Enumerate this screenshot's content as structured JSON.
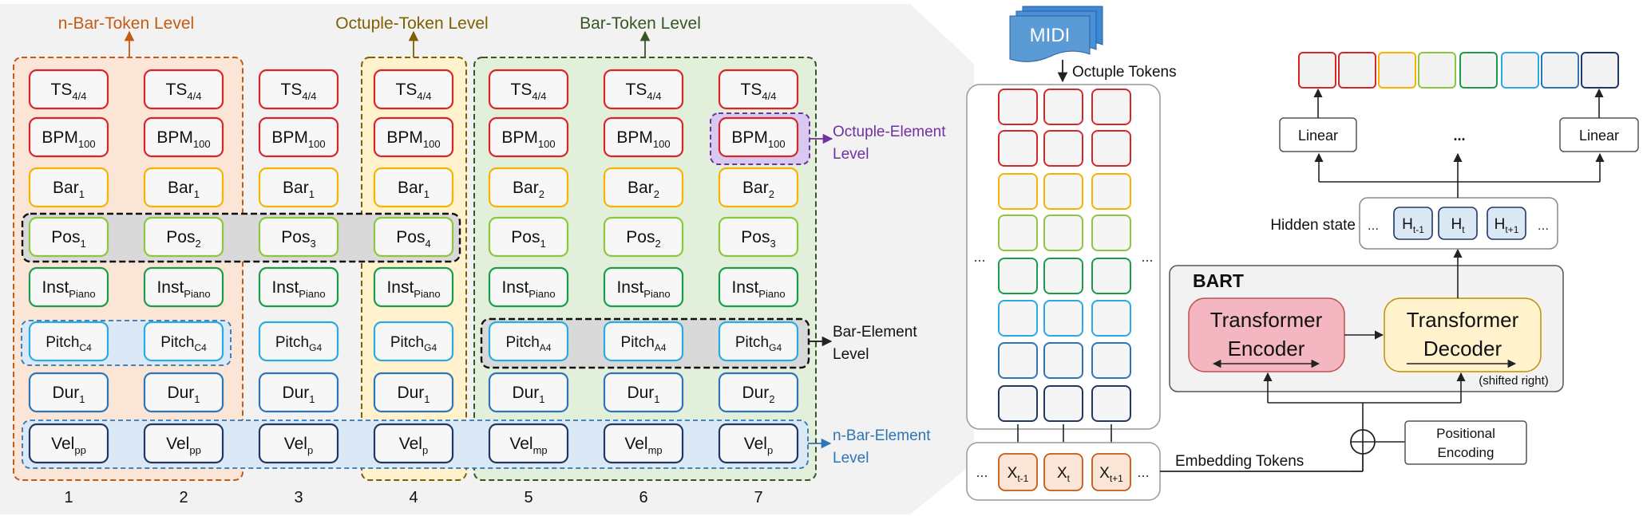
{
  "levels": {
    "n_bar_token": "n-Bar-Token Level",
    "octuple_token": "Octuple-Token Level",
    "bar_token": "Bar-Token Level",
    "octuple_element_line1": "Octuple-Element",
    "octuple_element_line2": "Level",
    "bar_element_line1": "Bar-Element",
    "bar_element_line2": "Level",
    "n_bar_element_line1": "n-Bar-Element",
    "n_bar_element_line2": "Level"
  },
  "columns": [
    {
      "index": "1",
      "tokens": [
        [
          "TS",
          "4/4"
        ],
        [
          "BPM",
          "100"
        ],
        [
          "Bar",
          "1"
        ],
        [
          "Pos",
          "1"
        ],
        [
          "Inst",
          "Piano"
        ],
        [
          "Pitch",
          "C4"
        ],
        [
          "Dur",
          "1"
        ],
        [
          "Vel",
          "pp"
        ]
      ]
    },
    {
      "index": "2",
      "tokens": [
        [
          "TS",
          "4/4"
        ],
        [
          "BPM",
          "100"
        ],
        [
          "Bar",
          "1"
        ],
        [
          "Pos",
          "2"
        ],
        [
          "Inst",
          "Piano"
        ],
        [
          "Pitch",
          "C4"
        ],
        [
          "Dur",
          "1"
        ],
        [
          "Vel",
          "pp"
        ]
      ]
    },
    {
      "index": "3",
      "tokens": [
        [
          "TS",
          "4/4"
        ],
        [
          "BPM",
          "100"
        ],
        [
          "Bar",
          "1"
        ],
        [
          "Pos",
          "3"
        ],
        [
          "Inst",
          "Piano"
        ],
        [
          "Pitch",
          "G4"
        ],
        [
          "Dur",
          "1"
        ],
        [
          "Vel",
          "p"
        ]
      ]
    },
    {
      "index": "4",
      "tokens": [
        [
          "TS",
          "4/4"
        ],
        [
          "BPM",
          "100"
        ],
        [
          "Bar",
          "1"
        ],
        [
          "Pos",
          "4"
        ],
        [
          "Inst",
          "Piano"
        ],
        [
          "Pitch",
          "G4"
        ],
        [
          "Dur",
          "1"
        ],
        [
          "Vel",
          "p"
        ]
      ]
    },
    {
      "index": "5",
      "tokens": [
        [
          "TS",
          "4/4"
        ],
        [
          "BPM",
          "100"
        ],
        [
          "Bar",
          "2"
        ],
        [
          "Pos",
          "1"
        ],
        [
          "Inst",
          "Piano"
        ],
        [
          "Pitch",
          "A4"
        ],
        [
          "Dur",
          "1"
        ],
        [
          "Vel",
          "mp"
        ]
      ]
    },
    {
      "index": "6",
      "tokens": [
        [
          "TS",
          "4/4"
        ],
        [
          "BPM",
          "100"
        ],
        [
          "Bar",
          "2"
        ],
        [
          "Pos",
          "2"
        ],
        [
          "Inst",
          "Piano"
        ],
        [
          "Pitch",
          "A4"
        ],
        [
          "Dur",
          "1"
        ],
        [
          "Vel",
          "mp"
        ]
      ]
    },
    {
      "index": "7",
      "tokens": [
        [
          "TS",
          "4/4"
        ],
        [
          "BPM",
          "100"
        ],
        [
          "Bar",
          "2"
        ],
        [
          "Pos",
          "3"
        ],
        [
          "Inst",
          "Piano"
        ],
        [
          "Pitch",
          "G4"
        ],
        [
          "Dur",
          "2"
        ],
        [
          "Vel",
          "p"
        ]
      ]
    }
  ],
  "row_colors": [
    "#d62728",
    "#d62728",
    "#f4b400",
    "#8cc63f",
    "#1a9c4a",
    "#29abe2",
    "#2e75b6",
    "#1f3864"
  ],
  "model": {
    "midi": "MIDI",
    "octuple_tokens": "Octuple Tokens",
    "embedding_tokens": "Embedding Tokens",
    "ellipsis": "...",
    "x_tokens": [
      [
        "X",
        "t-1"
      ],
      [
        "X",
        "t"
      ],
      [
        "X",
        "t+1"
      ]
    ],
    "bart": "BART",
    "encoder_line1": "Transformer",
    "encoder_line2": "Encoder",
    "decoder_line1": "Transformer",
    "decoder_line2": "Decoder",
    "shifted_right": "(shifted right)",
    "positional_line1": "Positional",
    "positional_line2": "Encoding",
    "hidden_state": "Hidden state",
    "h_tokens": [
      [
        "H",
        "t-1"
      ],
      [
        "H",
        "t"
      ],
      [
        "H",
        "t+1"
      ]
    ],
    "linear_left": "Linear",
    "linear_mid": "...",
    "linear_right": "Linear",
    "output_colors": [
      "#d62728",
      "#d62728",
      "#f4b400",
      "#8cc63f",
      "#1a9c4a",
      "#29abe2",
      "#2e75b6",
      "#1f3864"
    ]
  }
}
